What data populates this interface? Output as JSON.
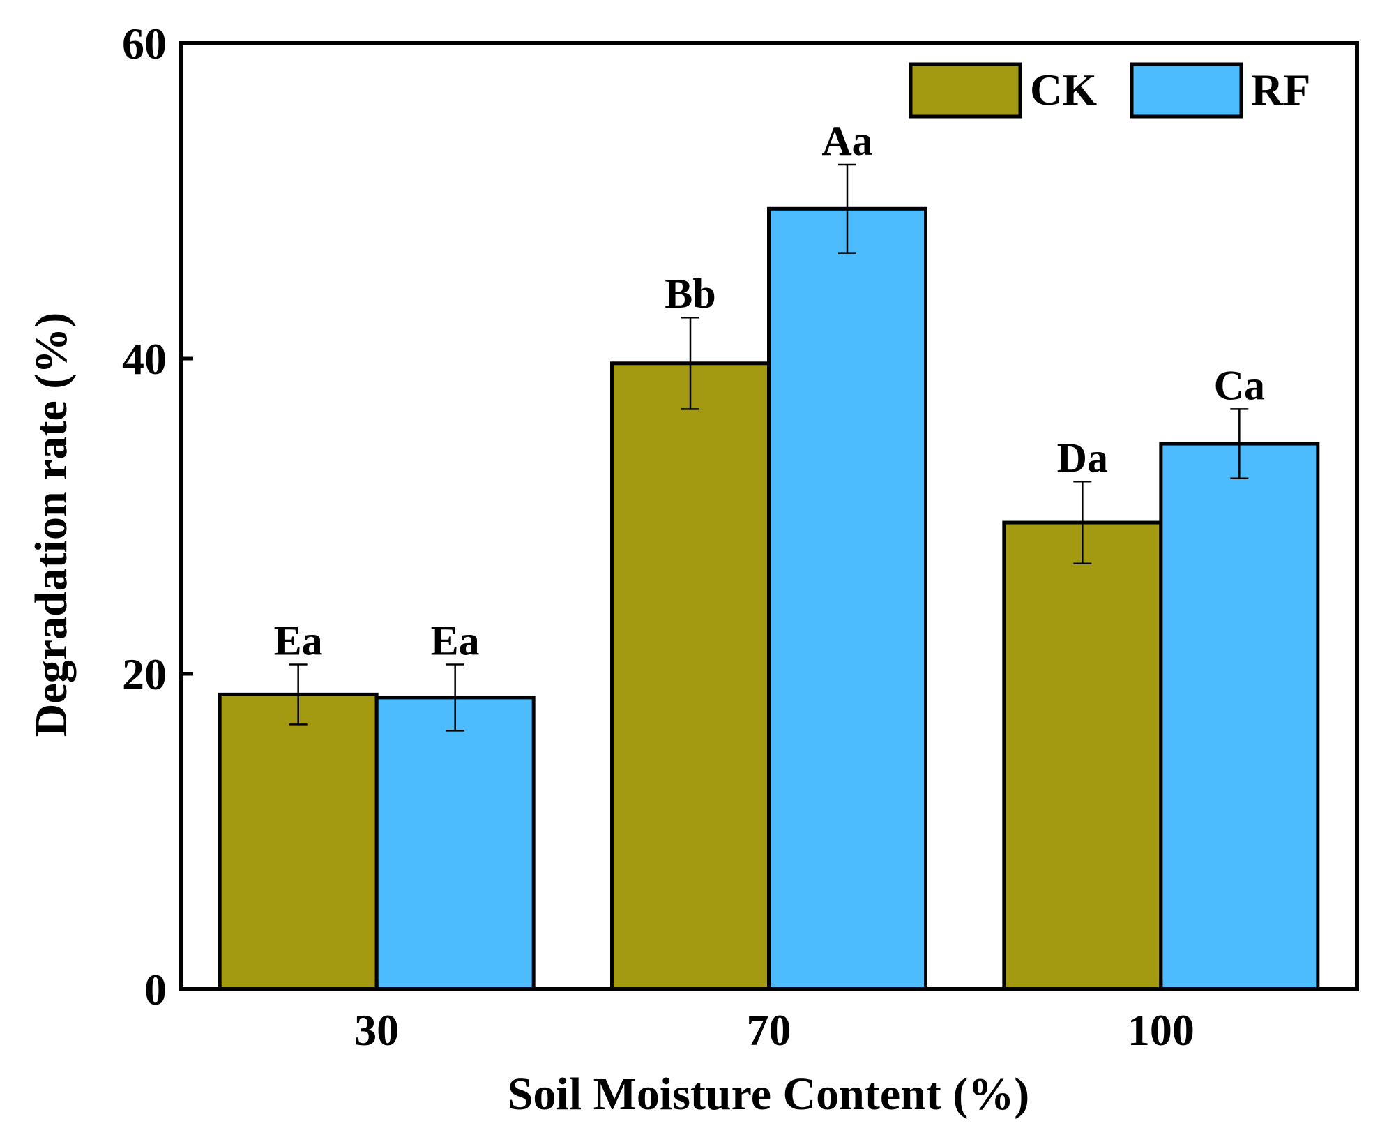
{
  "chart_data": {
    "type": "bar",
    "title": "",
    "xlabel": "Soil Moisture Content (%)",
    "ylabel": "Degradation rate (%)",
    "ylim": [
      0,
      60
    ],
    "yticks": [
      0,
      20,
      40,
      60
    ],
    "grid": false,
    "legend_position": "top-right",
    "categories": [
      "30",
      "70",
      "100"
    ],
    "series": [
      {
        "name": "CK",
        "color": "#a39a12",
        "values": [
          18.7,
          39.7,
          29.6
        ],
        "errors": [
          1.9,
          2.9,
          2.6
        ],
        "labels": [
          "Ea",
          "Bb",
          "Da"
        ]
      },
      {
        "name": "RF",
        "color": "#4cbcfe",
        "values": [
          18.5,
          49.5,
          34.6
        ],
        "errors": [
          2.1,
          2.8,
          2.2
        ],
        "labels": [
          "Ea",
          "Aa",
          "Ca"
        ]
      }
    ]
  }
}
